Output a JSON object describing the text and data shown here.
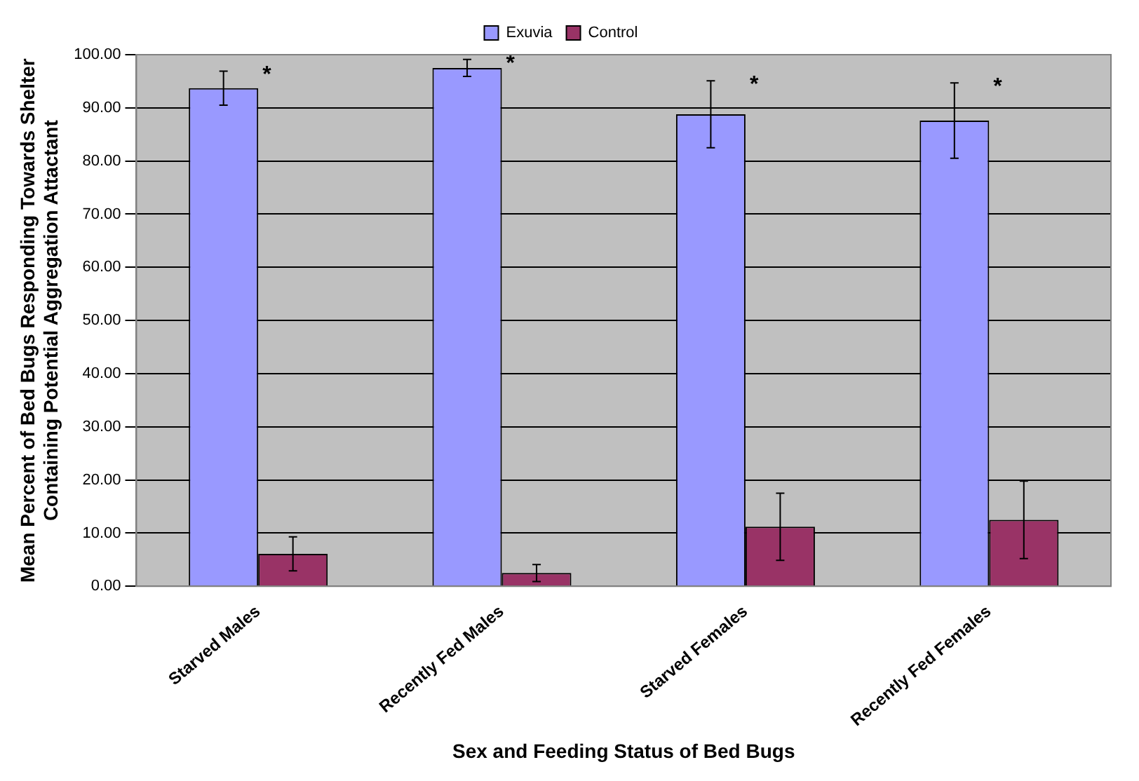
{
  "chart_data": {
    "type": "bar",
    "xlabel": "Sex and Feeding Status of Bed Bugs",
    "ylabel": "Mean Percent of Bed Bugs Responding Towards Shelter Containing Potential Aggregation Attactant",
    "categories": [
      "Starved Males",
      "Recently Fed Males",
      "Starved Females",
      "Recently Fed Females"
    ],
    "series": [
      {
        "name": "Exuvia",
        "color": "#9999ff",
        "values": [
          93.7,
          97.5,
          88.8,
          87.6
        ],
        "errors": [
          3.2,
          1.6,
          6.3,
          7.1
        ]
      },
      {
        "name": "Control",
        "color": "#993366",
        "values": [
          6.1,
          2.5,
          11.2,
          12.5
        ],
        "errors": [
          3.2,
          1.6,
          6.3,
          7.3
        ]
      }
    ],
    "ylim": [
      0,
      100
    ],
    "yticks": [
      {
        "value": 0,
        "label": "0.00"
      },
      {
        "value": 10,
        "label": "10.00"
      },
      {
        "value": 20,
        "label": "20.00"
      },
      {
        "value": 30,
        "label": "30.00"
      },
      {
        "value": 40,
        "label": "40.00"
      },
      {
        "value": 50,
        "label": "50.00"
      },
      {
        "value": 60,
        "label": "60.00"
      },
      {
        "value": 70,
        "label": "70.00"
      },
      {
        "value": 80,
        "label": "80.00"
      },
      {
        "value": 90,
        "label": "90.00"
      },
      {
        "value": 100,
        "label": "100.00"
      }
    ],
    "grid": "y",
    "legend": "top",
    "annotations": [
      "*",
      "*",
      "*",
      "*"
    ]
  }
}
